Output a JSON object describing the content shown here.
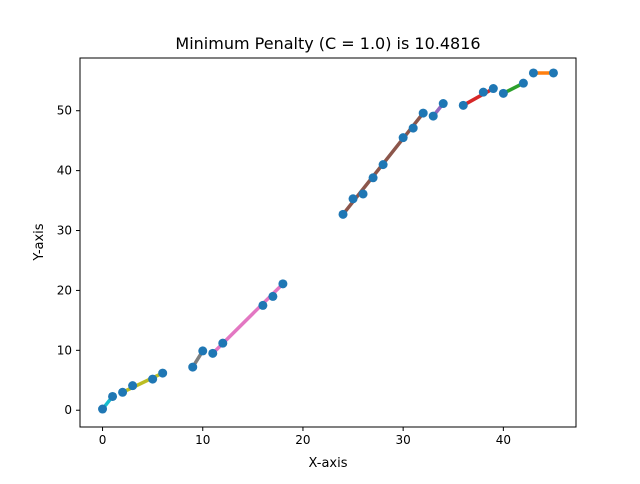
{
  "chart_data": {
    "type": "scatter",
    "title": "Minimum Penalty (C = 1.0) is 10.4816",
    "xlabel": "X-axis",
    "ylabel": "Y-axis",
    "xlim": [
      -2.25,
      47.25
    ],
    "ylim": [
      -2.8,
      58.8
    ],
    "xticks": [
      0,
      10,
      20,
      30,
      40
    ],
    "yticks": [
      0,
      10,
      20,
      30,
      40,
      50
    ],
    "grid": false,
    "legend": "none",
    "points": {
      "color": "#1f77b4",
      "x": [
        0,
        1,
        2,
        3,
        5,
        6,
        9,
        10,
        11,
        12,
        16,
        17,
        18,
        24,
        25,
        26,
        27,
        28,
        30,
        31,
        32,
        33,
        34,
        36,
        38,
        39,
        40,
        42,
        43,
        45
      ],
      "y": [
        0.2,
        2.3,
        3.0,
        4.1,
        5.2,
        6.2,
        7.2,
        9.9,
        9.5,
        11.2,
        17.5,
        19.0,
        21.1,
        32.7,
        35.3,
        36.1,
        38.8,
        41.0,
        45.5,
        47.1,
        49.6,
        49.1,
        51.2,
        50.9,
        53.1,
        53.7,
        52.9,
        54.6,
        56.3,
        56.3
      ]
    },
    "segments": [
      {
        "x": [
          0,
          1
        ],
        "y": [
          0.2,
          2.3
        ],
        "color": "#17becf"
      },
      {
        "x": [
          2,
          6
        ],
        "y": [
          3.0,
          6.2
        ],
        "color": "#bcbd22"
      },
      {
        "x": [
          9,
          10
        ],
        "y": [
          7.2,
          9.9
        ],
        "color": "#7f7f7f"
      },
      {
        "x": [
          11,
          18
        ],
        "y": [
          9.5,
          21.1
        ],
        "color": "#e377c2"
      },
      {
        "x": [
          24,
          32
        ],
        "y": [
          32.7,
          49.6
        ],
        "color": "#8c564b"
      },
      {
        "x": [
          33,
          34
        ],
        "y": [
          49.1,
          51.2
        ],
        "color": "#9467bd"
      },
      {
        "x": [
          36,
          39
        ],
        "y": [
          50.9,
          53.7
        ],
        "color": "#d62728"
      },
      {
        "x": [
          40,
          42
        ],
        "y": [
          52.9,
          54.6
        ],
        "color": "#2ca02c"
      },
      {
        "x": [
          43,
          45
        ],
        "y": [
          56.3,
          56.3
        ],
        "color": "#ff7f0e"
      }
    ]
  }
}
